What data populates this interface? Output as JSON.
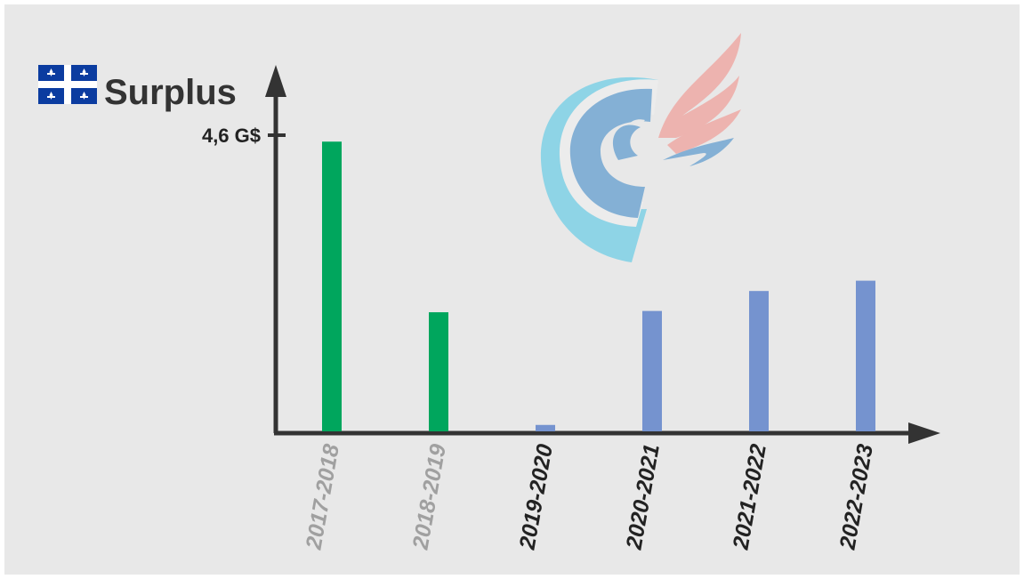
{
  "chart_data": {
    "type": "bar",
    "title": "Surplus",
    "categories": [
      "2017-2018",
      "2018-2019",
      "2019-2020",
      "2020-2021",
      "2021-2022",
      "2022-2023"
    ],
    "values": [
      4.5,
      1.85,
      0.1,
      1.87,
      2.18,
      2.34
    ],
    "y_ticks": [
      {
        "value": 4.6,
        "label": "4,6 G$"
      }
    ],
    "bar_colors": [
      "#00a65d",
      "#00a65d",
      "#7593cf",
      "#7593cf",
      "#7593cf",
      "#7593cf"
    ],
    "label_colors": [
      "#a0a0a0",
      "#a0a0a0",
      "#222222",
      "#222222",
      "#222222",
      "#222222"
    ],
    "ylim": [
      0,
      4.6
    ],
    "xlabel": "",
    "ylabel": "",
    "grid": false,
    "legend": "none"
  },
  "colors": {
    "background": "#e8e8e8",
    "axis": "#333333",
    "flag_blue": "#0b3ca0",
    "logo_blue": "#7faed4",
    "logo_cyan": "#8ad3e6",
    "logo_pink": "#eeb1ad"
  },
  "icons": {
    "flag": "quebec-flag-icon",
    "logo": "party-logo-icon"
  }
}
